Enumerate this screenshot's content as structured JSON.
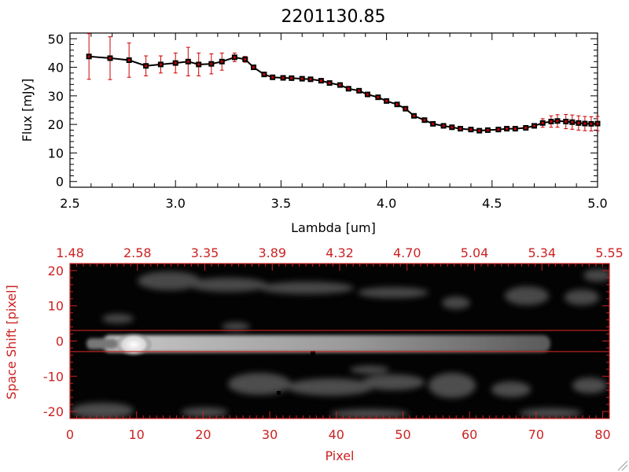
{
  "chart_data": [
    {
      "type": "line",
      "title": "2201130.85",
      "xlabel": "Lambda [um]",
      "ylabel": "Flux [mJy]",
      "xlim": [
        2.5,
        5.0
      ],
      "ylim": [
        -2,
        52
      ],
      "x_ticks": [
        2.5,
        3.0,
        3.5,
        4.0,
        4.5,
        5.0
      ],
      "x_tick_labels": [
        "2.5",
        "3.0",
        "3.5",
        "4.0",
        "4.5",
        "5.0"
      ],
      "y_ticks": [
        0,
        10,
        20,
        30,
        40,
        50
      ],
      "y_tick_labels": [
        "0",
        "10",
        "20",
        "30",
        "40",
        "50"
      ],
      "series": [
        {
          "marker": "square",
          "line_color": "#000000",
          "marker_color": "#000000",
          "errorbar_color": "#cc0000",
          "x": [
            2.59,
            2.69,
            2.78,
            2.86,
            2.93,
            3.0,
            3.06,
            3.11,
            3.17,
            3.22,
            3.28,
            3.33,
            3.37,
            3.42,
            3.46,
            3.51,
            3.55,
            3.6,
            3.64,
            3.69,
            3.73,
            3.78,
            3.82,
            3.87,
            3.91,
            3.96,
            4.0,
            4.05,
            4.09,
            4.13,
            4.18,
            4.22,
            4.27,
            4.31,
            4.35,
            4.4,
            4.44,
            4.48,
            4.53,
            4.57,
            4.61,
            4.66,
            4.7,
            4.74,
            4.78,
            4.81,
            4.85,
            4.88,
            4.91,
            4.94,
            4.97,
            5.0
          ],
          "y": [
            43.8,
            43.2,
            42.5,
            40.5,
            41.0,
            41.5,
            42.0,
            41.0,
            41.2,
            42.0,
            43.5,
            42.8,
            40.0,
            37.5,
            36.5,
            36.3,
            36.2,
            36.0,
            35.8,
            35.3,
            34.5,
            33.8,
            32.5,
            31.8,
            30.5,
            29.5,
            28.2,
            27.0,
            25.5,
            23.0,
            21.5,
            20.2,
            19.5,
            19.0,
            18.5,
            18.2,
            17.8,
            18.0,
            18.2,
            18.5,
            18.5,
            18.8,
            19.5,
            20.5,
            21.0,
            21.2,
            21.0,
            20.8,
            20.5,
            20.3,
            20.2,
            20.3
          ],
          "err": [
            8.0,
            7.5,
            6.0,
            3.5,
            3.0,
            3.5,
            5.0,
            4.0,
            3.5,
            3.0,
            1.5,
            1.0,
            0.6,
            0.5,
            0.5,
            0.5,
            0.5,
            0.5,
            0.5,
            0.5,
            0.5,
            0.5,
            0.5,
            0.5,
            0.5,
            0.5,
            0.5,
            0.5,
            0.5,
            0.5,
            0.5,
            0.5,
            0.5,
            0.5,
            0.5,
            0.5,
            0.5,
            0.5,
            0.5,
            0.5,
            0.5,
            0.5,
            0.8,
            1.5,
            2.0,
            2.2,
            2.5,
            2.5,
            2.5,
            2.5,
            2.5,
            2.5
          ]
        }
      ]
    },
    {
      "type": "heatmap",
      "colormap": "grayscale",
      "xlabel": "Pixel",
      "ylabel": "Space Shift [pixel]",
      "xlim": [
        0,
        81
      ],
      "ylim": [
        -22,
        22
      ],
      "x_ticks": [
        0,
        10,
        20,
        30,
        40,
        50,
        60,
        70,
        80
      ],
      "x_tick_labels": [
        "0",
        "10",
        "20",
        "30",
        "40",
        "50",
        "60",
        "70",
        "80"
      ],
      "y_ticks": [
        -20,
        -10,
        0,
        10,
        20
      ],
      "y_tick_labels": [
        "-20",
        "-10",
        "0",
        "10",
        "20"
      ],
      "top_axis_tick_labels": [
        "1.48",
        "2.58",
        "3.35",
        "3.89",
        "4.32",
        "4.70",
        "5.04",
        "5.34",
        "5.55"
      ],
      "axis_color": "#cc2222",
      "extraction_lines_y": [
        3,
        -3
      ],
      "line_color": "#cc2222"
    }
  ]
}
